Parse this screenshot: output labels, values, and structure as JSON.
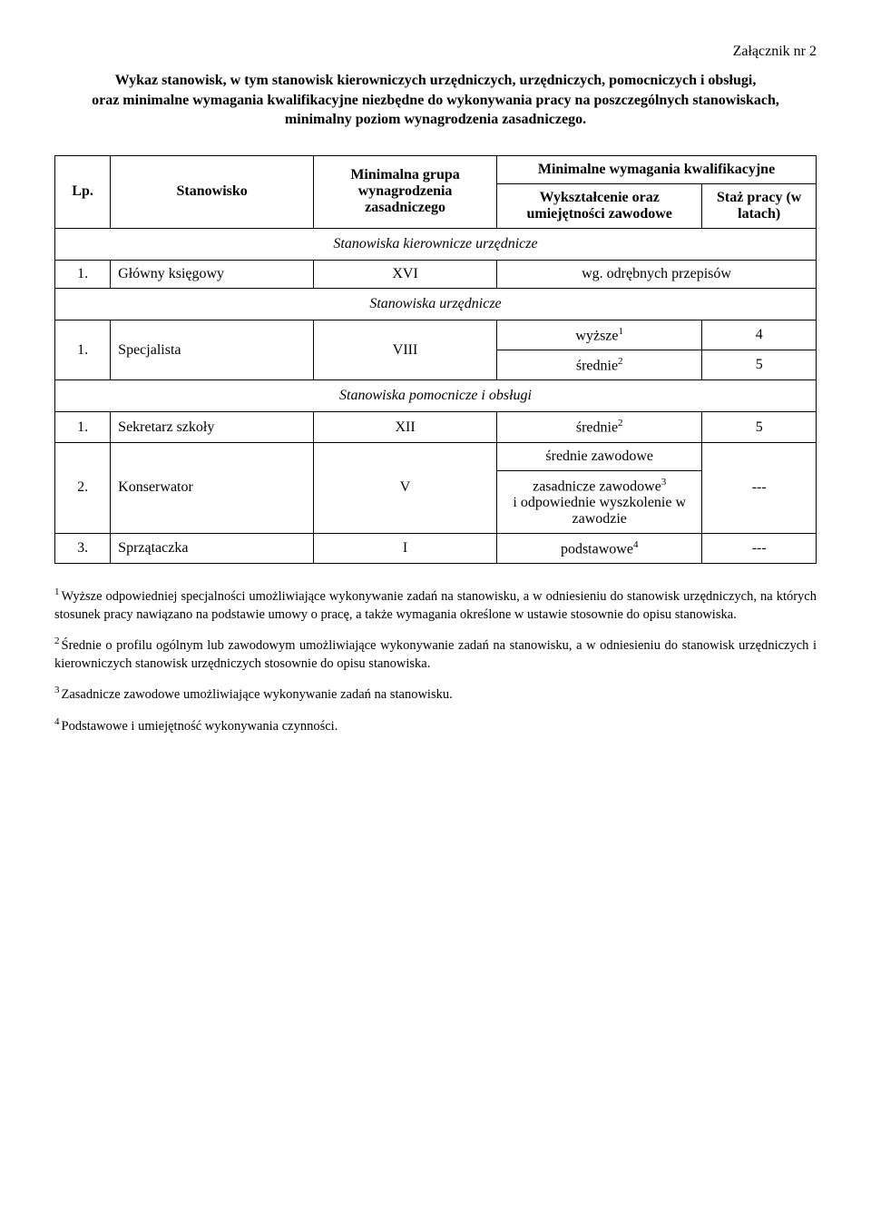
{
  "attachment": "Załącznik nr 2",
  "intro_line1": "Wykaz stanowisk, w tym stanowisk kierowniczych urzędniczych, urzędniczych, pomocniczych i obsługi,",
  "intro_line2": "oraz minimalne wymagania kwalifikacyjne niezbędne do wykonywania pracy na poszczególnych stanowiskach,",
  "intro_line3": "minimalny poziom wynagrodzenia zasadniczego.",
  "header": {
    "lp": "Lp.",
    "stanowisko": "Stanowisko",
    "minimalna_grupa": "Minimalna grupa wynagrodzenia zasadniczego",
    "minimalne_wymagania": "Minimalne wymagania kwalifikacyjne",
    "wyksztalcenie": "Wykształcenie oraz umiejętności zawodowe",
    "staz": "Staż pracy (w latach)"
  },
  "sections": {
    "kierownicze": "Stanowiska kierownicze urzędnicze",
    "urzednicze": "Stanowiska urzędnicze",
    "pomocnicze": "Stanowiska pomocnicze i obsługi"
  },
  "rows": {
    "glowny_ksiegowy": {
      "lp": "1.",
      "pos": "Główny księgowy",
      "grp": "XVI",
      "edu": "wg. odrębnych przepisów"
    },
    "specjalista": {
      "lp": "1.",
      "pos": "Specjalista",
      "grp": "VIII",
      "r1_edu": "wyższe",
      "r1_sup": "1",
      "r1_exp": "4",
      "r2_edu": "średnie",
      "r2_sup": "2",
      "r2_exp": "5"
    },
    "sekretarz": {
      "lp": "1.",
      "pos": "Sekretarz szkoły",
      "grp": "XII",
      "edu": "średnie",
      "edu_sup": "2",
      "exp": "5"
    },
    "konserwator": {
      "lp": "2.",
      "pos": "Konserwator",
      "grp": "V",
      "r1_edu": "średnie zawodowe",
      "r2_edu": "zasadnicze zawodowe",
      "r2_sup": "3",
      "r2_edu_extra": "i odpowiednie wyszkolenie w zawodzie",
      "exp": "---"
    },
    "sprzataczka": {
      "lp": "3.",
      "pos": "Sprzątaczka",
      "grp": "I",
      "edu": "podstawowe",
      "edu_sup": "4",
      "exp": "---"
    }
  },
  "footnotes": {
    "f1_sup": "1",
    "f1": "Wyższe odpowiedniej specjalności umożliwiające wykonywanie zadań na stanowisku, a w odniesieniu do stanowisk urzędniczych, na których stosunek pracy nawiązano na podstawie umowy o pracę, a także wymagania określone w ustawie stosownie do opisu stanowiska.",
    "f2_sup": "2",
    "f2": "Średnie o profilu ogólnym lub zawodowym umożliwiające wykonywanie zadań na stanowisku, a w odniesieniu do stanowisk urzędniczych i kierowniczych stanowisk urzędniczych stosownie do opisu stanowiska.",
    "f3_sup": "3",
    "f3": "Zasadnicze zawodowe umożliwiające wykonywanie zadań na stanowisku.",
    "f4_sup": "4",
    "f4": "Podstawowe i umiejętność wykonywania czynności."
  }
}
